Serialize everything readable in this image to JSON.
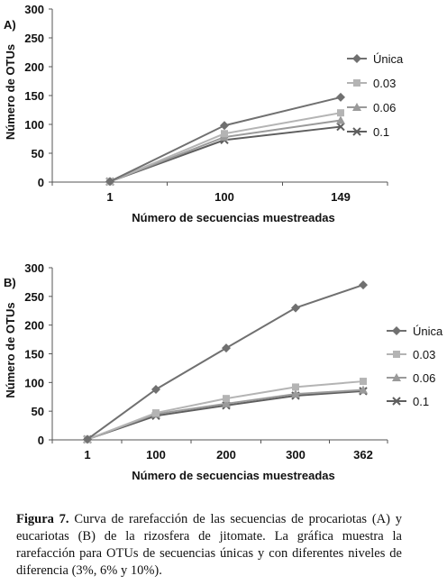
{
  "chart_data": [
    {
      "type": "line",
      "panel_label": "A)",
      "categories": [
        "1",
        "100",
        "149"
      ],
      "xlabel": "Número de secuencias muestreadas",
      "ylabel": "Número de OTUs",
      "ylim": [
        0,
        300
      ],
      "yticks": [
        "0",
        "50",
        "100",
        "150",
        "200",
        "250",
        "300"
      ],
      "grid": false,
      "legend_position": "right",
      "series": [
        {
          "name": "Única",
          "marker": "diamond",
          "color": "#707070",
          "values": [
            1,
            98,
            147
          ]
        },
        {
          "name": "0.03",
          "marker": "square",
          "color": "#b4b4b4",
          "values": [
            1,
            84,
            120
          ]
        },
        {
          "name": "0.06",
          "marker": "triangle",
          "color": "#9a9a9a",
          "values": [
            1,
            78,
            107
          ]
        },
        {
          "name": "0.1",
          "marker": "x",
          "color": "#5e5e5e",
          "values": [
            1,
            73,
            96
          ]
        }
      ]
    },
    {
      "type": "line",
      "panel_label": "B)",
      "categories": [
        "1",
        "100",
        "200",
        "300",
        "362"
      ],
      "xlabel": "Número de secuencias muestreadas",
      "ylabel": "Número de OTUs",
      "ylim": [
        0,
        300
      ],
      "yticks": [
        "0",
        "50",
        "100",
        "150",
        "200",
        "250",
        "300"
      ],
      "grid": false,
      "legend_position": "right",
      "series": [
        {
          "name": "Única",
          "marker": "diamond",
          "color": "#707070",
          "values": [
            1,
            88,
            160,
            230,
            270
          ]
        },
        {
          "name": "0.03",
          "marker": "square",
          "color": "#b4b4b4",
          "values": [
            1,
            47,
            72,
            92,
            102
          ]
        },
        {
          "name": "0.06",
          "marker": "triangle",
          "color": "#9a9a9a",
          "values": [
            1,
            45,
            63,
            80,
            87
          ]
        },
        {
          "name": "0.1",
          "marker": "x",
          "color": "#5e5e5e",
          "values": [
            1,
            42,
            60,
            77,
            85
          ]
        }
      ]
    }
  ],
  "caption": {
    "label": "Figura 7.",
    "text": " Curva de rarefacción de las secuencias de procariotas (A) y eucariotas (B) de la rizosfera de jitomate. La gráfica muestra la rarefacción para OTUs de secuencias únicas y con diferentes niveles de diferencia (3%, 6% y 10%)."
  }
}
